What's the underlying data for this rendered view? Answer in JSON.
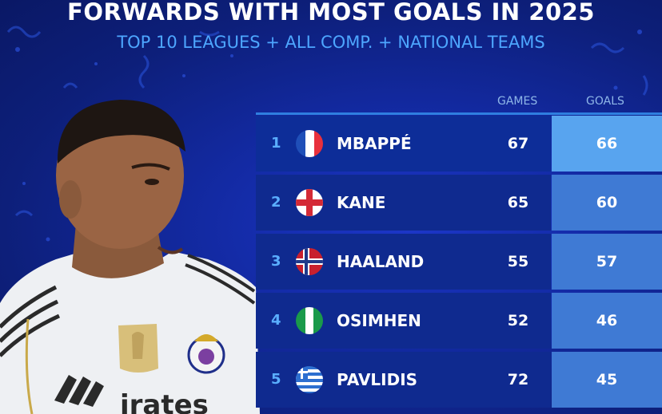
{
  "header": {
    "title": "FORWARDS WITH MOST GOALS IN 2025",
    "subtitle": "TOP 10 LEAGUES + ALL COMP. + NATIONAL TEAMS"
  },
  "table": {
    "columns": {
      "games": "GAMES",
      "goals": "GOALS"
    },
    "rows": [
      {
        "rank": "1",
        "flag": "france-flag-icon",
        "name": "MBAPPÉ",
        "games": "67",
        "goals": "66"
      },
      {
        "rank": "2",
        "flag": "england-flag-icon",
        "name": "KANE",
        "games": "65",
        "goals": "60"
      },
      {
        "rank": "3",
        "flag": "norway-flag-icon",
        "name": "HAALAND",
        "games": "55",
        "goals": "57"
      },
      {
        "rank": "4",
        "flag": "nigeria-flag-icon",
        "name": "OSIMHEN",
        "games": "52",
        "goals": "46"
      },
      {
        "rank": "5",
        "flag": "greece-flag-icon",
        "name": "PAVLIDIS",
        "games": "72",
        "goals": "45"
      }
    ]
  },
  "player_shirt": {
    "sponsor_text": "irates"
  },
  "colors": {
    "background": "#132aa3",
    "row": "#0f2a8f",
    "goals_cell": "#3f7ad4",
    "accent": "#4da6ff"
  }
}
